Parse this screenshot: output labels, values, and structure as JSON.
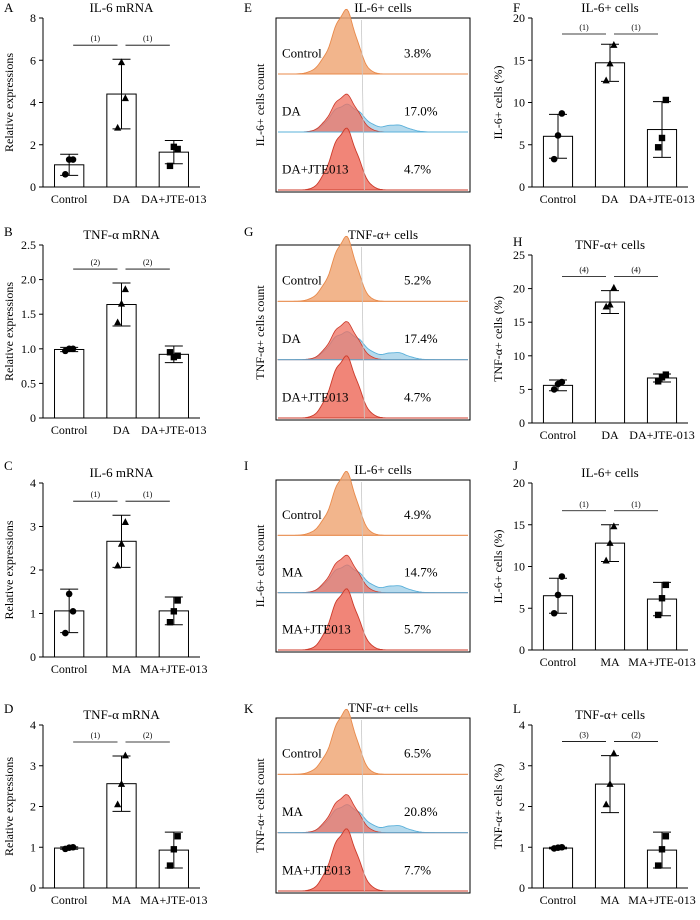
{
  "colors": {
    "control_curve": "#f0a878",
    "control_stroke": "#e8894a",
    "treat_curve": "#a8d4ea",
    "treat_stroke": "#5ab0da",
    "drug_curve": "#ef7060",
    "drug_stroke": "#cc3a2a",
    "bar_fill": "#ffffff",
    "axis": "#000000"
  },
  "chart_data": [
    {
      "id": "A",
      "type": "bar",
      "title": "IL-6 mRNA",
      "ylabel": "Relative expressions",
      "ylim": [
        0,
        8
      ],
      "yticks": [
        0,
        2,
        4,
        6,
        8
      ],
      "categories": [
        "Control",
        "DA",
        "DA+JTE-013"
      ],
      "values": [
        1.05,
        4.4,
        1.65
      ],
      "errors": [
        0.5,
        1.65,
        0.55
      ],
      "points": [
        [
          0.6,
          1.3,
          1.3
        ],
        [
          2.8,
          5.9,
          4.2
        ],
        [
          1.0,
          1.9,
          1.8
        ]
      ],
      "markers": [
        "circle",
        "triangle",
        "square"
      ],
      "significance": [
        {
          "label": "(1)",
          "from": 0,
          "to": 1
        },
        {
          "label": "(1)",
          "from": 1,
          "to": 2
        }
      ]
    },
    {
      "id": "B",
      "type": "bar",
      "title": "TNF-α mRNA",
      "ylabel": "Relative expressions",
      "ylim": [
        0,
        2.5
      ],
      "yticks": [
        "0",
        "0.5",
        "1.0",
        "1.5",
        "2.0",
        "2.5"
      ],
      "categories": [
        "Control",
        "DA",
        "DA+JTE-013"
      ],
      "values": [
        0.99,
        1.64,
        0.92
      ],
      "errors": [
        0.03,
        0.31,
        0.12
      ],
      "points": [
        [
          0.97,
          1.0,
          1.0
        ],
        [
          1.38,
          1.65,
          1.86
        ],
        [
          0.95,
          0.88,
          0.9
        ]
      ],
      "markers": [
        "circle",
        "triangle",
        "square"
      ],
      "significance": [
        {
          "label": "(2)",
          "from": 0,
          "to": 1
        },
        {
          "label": "(2)",
          "from": 1,
          "to": 2
        }
      ]
    },
    {
      "id": "C",
      "type": "bar",
      "title": "IL-6 mRNA",
      "ylabel": "Relative expressions",
      "ylim": [
        0,
        4
      ],
      "yticks": [
        0,
        1,
        2,
        3,
        4
      ],
      "categories": [
        "Control",
        "MA",
        "MA+JTE-013"
      ],
      "values": [
        1.06,
        2.66,
        1.06
      ],
      "errors": [
        0.5,
        0.6,
        0.32
      ],
      "points": [
        [
          0.55,
          1.45,
          1.05
        ],
        [
          2.1,
          2.6,
          3.1
        ],
        [
          0.8,
          1.05,
          1.3
        ]
      ],
      "markers": [
        "circle",
        "triangle",
        "square"
      ],
      "significance": [
        {
          "label": "(1)",
          "from": 0,
          "to": 1
        },
        {
          "label": "(1)",
          "from": 1,
          "to": 2
        }
      ]
    },
    {
      "id": "D",
      "type": "bar",
      "title": "TNF-α mRNA",
      "ylabel": "Relative expressions",
      "ylim": [
        0,
        4
      ],
      "yticks": [
        0,
        1,
        2,
        3,
        4
      ],
      "categories": [
        "Control",
        "MA",
        "MA+JTE-013"
      ],
      "values": [
        0.98,
        2.56,
        0.93
      ],
      "errors": [
        0.03,
        0.68,
        0.44
      ],
      "points": [
        [
          0.96,
          0.99,
          1.0
        ],
        [
          2.05,
          2.55,
          3.25
        ],
        [
          0.55,
          0.95,
          1.27
        ]
      ],
      "markers": [
        "circle",
        "triangle",
        "square"
      ],
      "significance": [
        {
          "label": "(1)",
          "from": 0,
          "to": 1
        },
        {
          "label": "(2)",
          "from": 1,
          "to": 2
        }
      ]
    },
    {
      "id": "E",
      "type": "histogram",
      "title": "IL-6+ cells",
      "ylabel": "IL-6+ cells count",
      "rows": [
        {
          "label": "Control",
          "percent": "3.8%"
        },
        {
          "label": "DA",
          "percent": "17.0%"
        },
        {
          "label": "DA+JTE013",
          "percent": "4.7%"
        }
      ]
    },
    {
      "id": "G",
      "type": "histogram",
      "title": "TNF-α+ cells",
      "ylabel": "TNF-α+ cells count",
      "rows": [
        {
          "label": "Control",
          "percent": "5.2%"
        },
        {
          "label": "DA",
          "percent": "17.4%"
        },
        {
          "label": "DA+JTE013",
          "percent": "4.7%"
        }
      ]
    },
    {
      "id": "I",
      "type": "histogram",
      "title": "IL-6+ cells",
      "ylabel": "IL-6+ cells count",
      "rows": [
        {
          "label": "Control",
          "percent": "4.9%"
        },
        {
          "label": "MA",
          "percent": "14.7%"
        },
        {
          "label": "MA+JTE013",
          "percent": "5.7%"
        }
      ]
    },
    {
      "id": "K",
      "type": "histogram",
      "title": "TNF-α+ cells",
      "ylabel": "TNF-α+ cells count",
      "rows": [
        {
          "label": "Control",
          "percent": "6.5%"
        },
        {
          "label": "MA",
          "percent": "20.8%"
        },
        {
          "label": "MA+JTE013",
          "percent": "7.7%"
        }
      ]
    },
    {
      "id": "F",
      "type": "bar",
      "title": "IL-6+ cells",
      "ylabel": "IL-6+ cells (%)",
      "ylim": [
        0,
        20
      ],
      "yticks": [
        0,
        5,
        10,
        15,
        20
      ],
      "categories": [
        "Control",
        "DA",
        "DA+JTE-013"
      ],
      "values": [
        6.0,
        14.7,
        6.8
      ],
      "errors": [
        2.6,
        2.2,
        3.3
      ],
      "points": [
        [
          3.3,
          6.1,
          8.7
        ],
        [
          12.6,
          14.6,
          16.8
        ],
        [
          4.7,
          5.8,
          10.3
        ]
      ],
      "markers": [
        "circle",
        "triangle",
        "square"
      ],
      "significance": [
        {
          "label": "(1)",
          "from": 0,
          "to": 1
        },
        {
          "label": "(1)",
          "from": 1,
          "to": 2
        }
      ]
    },
    {
      "id": "H",
      "type": "bar",
      "title": "TNF-α+ cells",
      "ylabel": "TNF-α+ cells (%)",
      "ylim": [
        0,
        25
      ],
      "yticks": [
        0,
        5,
        10,
        15,
        20,
        25
      ],
      "categories": [
        "Control",
        "DA",
        "DA+JTE-013"
      ],
      "values": [
        5.6,
        18.0,
        6.7
      ],
      "errors": [
        0.8,
        1.7,
        0.6
      ],
      "points": [
        [
          5.0,
          5.8,
          6.1
        ],
        [
          17.3,
          17.6,
          20.1
        ],
        [
          6.2,
          6.8,
          7.2
        ]
      ],
      "markers": [
        "circle",
        "triangle",
        "square"
      ],
      "significance": [
        {
          "label": "(4)",
          "from": 0,
          "to": 1
        },
        {
          "label": "(4)",
          "from": 1,
          "to": 2
        }
      ]
    },
    {
      "id": "J",
      "type": "bar",
      "title": "IL-6+ cells",
      "ylabel": "IL-6+ cells (%)",
      "ylim": [
        0,
        20
      ],
      "yticks": [
        0,
        5,
        10,
        15,
        20
      ],
      "categories": [
        "Control",
        "MA",
        "MA+JTE-013"
      ],
      "values": [
        6.5,
        12.8,
        6.1
      ],
      "errors": [
        2.1,
        2.2,
        2.0
      ],
      "points": [
        [
          4.4,
          6.6,
          8.8
        ],
        [
          10.7,
          12.8,
          14.8
        ],
        [
          4.2,
          6.2,
          7.8
        ]
      ],
      "markers": [
        "circle",
        "triangle",
        "square"
      ],
      "significance": [
        {
          "label": "(1)",
          "from": 0,
          "to": 1
        },
        {
          "label": "(1)",
          "from": 1,
          "to": 2
        }
      ]
    },
    {
      "id": "L",
      "type": "bar",
      "title": "TNF-α+ cells",
      "ylabel": "TNF-α+ cells (%)",
      "ylim": [
        0,
        4
      ],
      "yticks": [
        0,
        1,
        2,
        3,
        4
      ],
      "categories": [
        "Control",
        "MA",
        "MA+JTE-013"
      ],
      "values": [
        0.98,
        2.55,
        0.93
      ],
      "errors": [
        0.02,
        0.7,
        0.44
      ],
      "points": [
        [
          0.97,
          0.99,
          1.0
        ],
        [
          2.05,
          2.55,
          3.3
        ],
        [
          0.55,
          0.95,
          1.27
        ]
      ],
      "markers": [
        "circle",
        "triangle",
        "square"
      ],
      "significance": [
        {
          "label": "(3)",
          "from": 0,
          "to": 1
        },
        {
          "label": "(2)",
          "from": 1,
          "to": 2
        }
      ]
    }
  ]
}
